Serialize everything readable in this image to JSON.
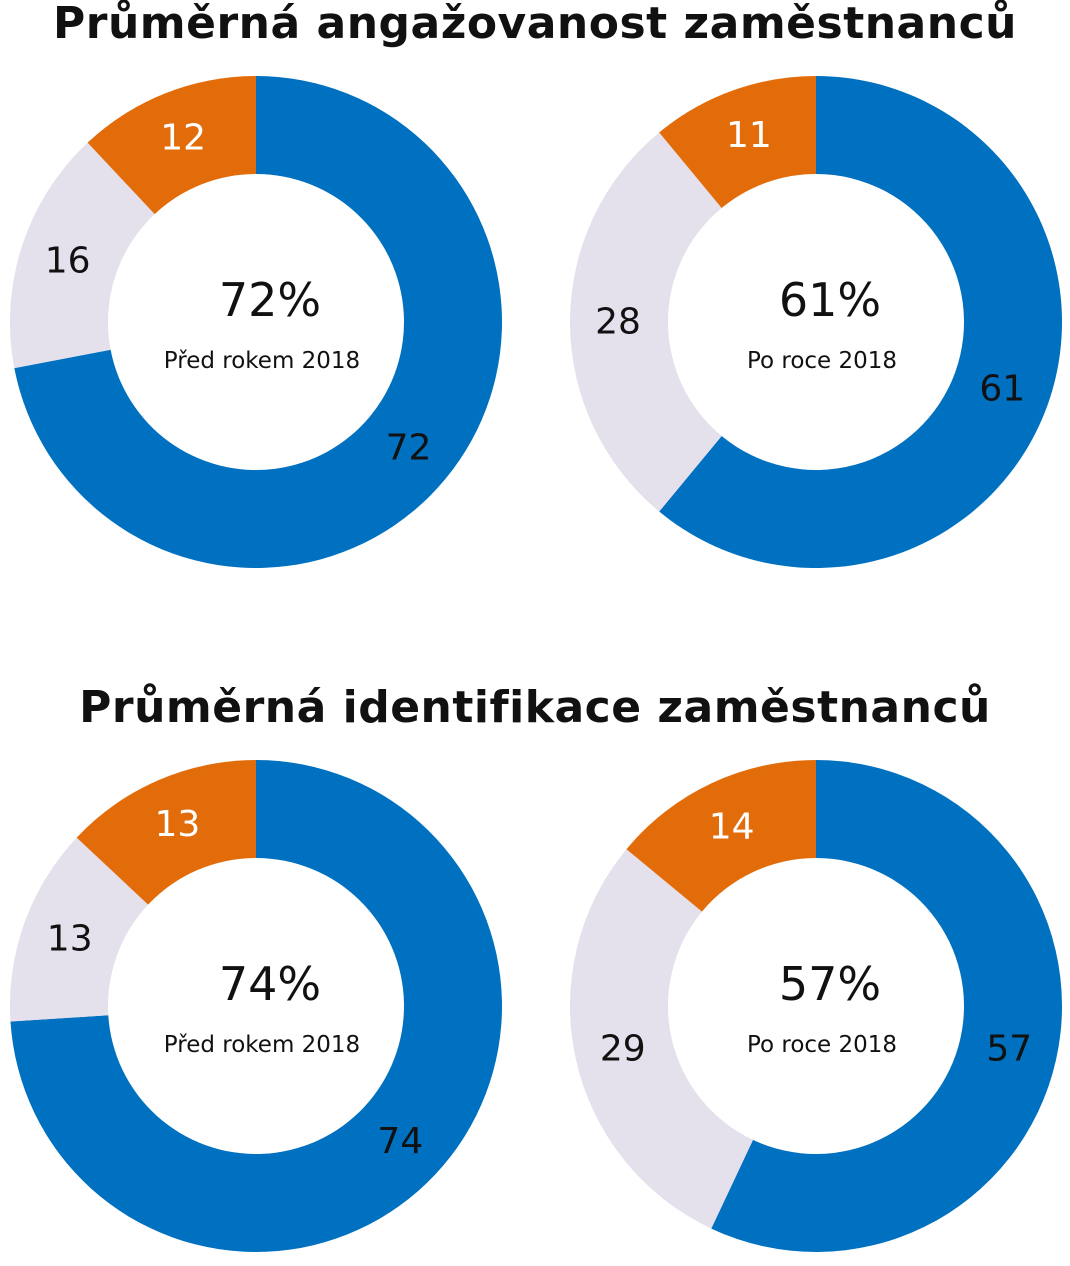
{
  "titles": {
    "engagement": "Průměrná angažovanost zaměstnanců",
    "identification": "Průměrná identifikace zaměstnanců"
  },
  "colors": {
    "blue": "#0070C0",
    "lavender": "#E4E0EC",
    "orange": "#E36C0A",
    "white": "#FFFFFF"
  },
  "chart_data": [
    {
      "type": "pie",
      "donut": true,
      "title": "",
      "center_value": "72%",
      "center_label": "Před rokem 2018",
      "series": [
        {
          "value": 72,
          "label": "72",
          "color": "blue"
        },
        {
          "value": 16,
          "label": "16",
          "color": "lavender"
        },
        {
          "value": 12,
          "label": "12",
          "color": "orange"
        }
      ]
    },
    {
      "type": "pie",
      "donut": true,
      "title": "",
      "center_value": "61%",
      "center_label": "Po roce 2018",
      "series": [
        {
          "value": 61,
          "label": "61",
          "color": "blue"
        },
        {
          "value": 28,
          "label": "28",
          "color": "lavender"
        },
        {
          "value": 11,
          "label": "11",
          "color": "orange"
        }
      ]
    },
    {
      "type": "pie",
      "donut": true,
      "title": "",
      "center_value": "74%",
      "center_label": "Před rokem 2018",
      "series": [
        {
          "value": 74,
          "label": "74",
          "color": "blue"
        },
        {
          "value": 13,
          "label": "13",
          "color": "lavender"
        },
        {
          "value": 13,
          "label": "13",
          "color": "orange"
        }
      ]
    },
    {
      "type": "pie",
      "donut": true,
      "title": "",
      "center_value": "57%",
      "center_label": "Po roce 2018",
      "series": [
        {
          "value": 57,
          "label": "57",
          "color": "blue"
        },
        {
          "value": 29,
          "label": "29",
          "color": "lavender"
        },
        {
          "value": 14,
          "label": "14",
          "color": "orange"
        }
      ]
    }
  ]
}
